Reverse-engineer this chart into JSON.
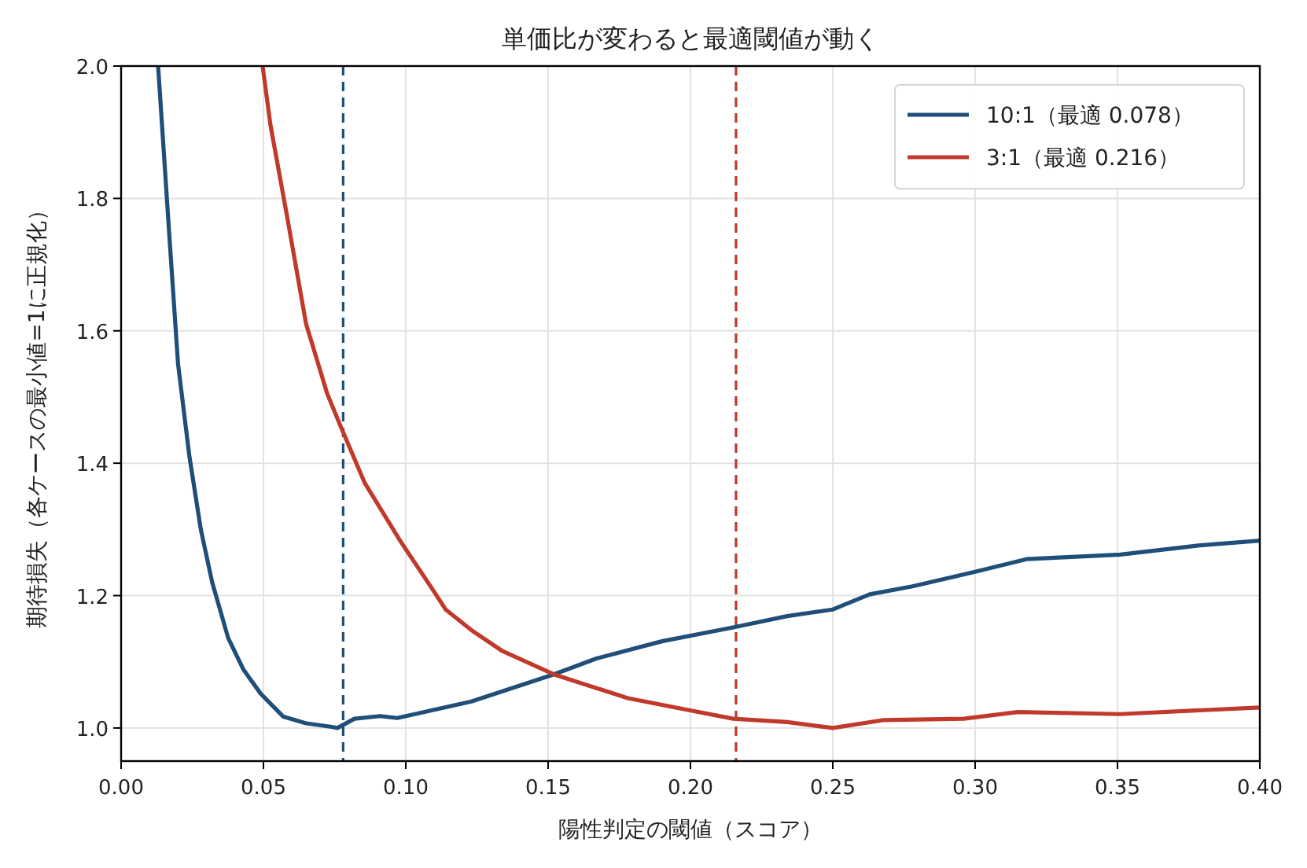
{
  "chart_data": {
    "type": "line",
    "title": "単価比が変わると最適閾値が動く",
    "xlabel": "陽性判定の閾値（スコア）",
    "ylabel": "期待損失（各ケースの最小値=1に正規化）",
    "xlim": [
      0,
      0.4
    ],
    "ylim": [
      0.95,
      2.0
    ],
    "xticks": [
      {
        "value": 0,
        "label": "0.00"
      },
      {
        "value": 0.05,
        "label": "0.05"
      },
      {
        "value": 0.1,
        "label": "0.10"
      },
      {
        "value": 0.15,
        "label": "0.15"
      },
      {
        "value": 0.2,
        "label": "0.20"
      },
      {
        "value": 0.25,
        "label": "0.25"
      },
      {
        "value": 0.3,
        "label": "0.30"
      },
      {
        "value": 0.35,
        "label": "0.35"
      },
      {
        "value": 0.4,
        "label": "0.40"
      }
    ],
    "yticks": [
      {
        "value": 1.0,
        "label": "1.0"
      },
      {
        "value": 1.2,
        "label": "1.2"
      },
      {
        "value": 1.4,
        "label": "1.4"
      },
      {
        "value": 1.6,
        "label": "1.6"
      },
      {
        "value": 1.8,
        "label": "1.8"
      },
      {
        "value": 2.0,
        "label": "2.0"
      }
    ],
    "grid": true,
    "legend": "top right",
    "series": [
      {
        "name": "10:1（最適 0.078）",
        "color": "#1f4e79",
        "x": [
          0.013,
          0.017,
          0.02,
          0.024,
          0.028,
          0.032,
          0.0376,
          0.043,
          0.049,
          0.057,
          0.065,
          0.0735,
          0.076,
          0.082,
          0.091,
          0.097,
          0.123,
          0.152,
          0.167,
          0.19,
          0.215,
          0.234,
          0.25,
          0.263,
          0.278,
          0.3,
          0.318,
          0.351,
          0.379,
          0.4
        ],
        "values": [
          2.0,
          1.74,
          1.55,
          1.41,
          1.3,
          1.22,
          1.136,
          1.088,
          1.052,
          1.017,
          1.007,
          1.002,
          1.0,
          1.014,
          1.018,
          1.015,
          1.04,
          1.081,
          1.105,
          1.131,
          1.152,
          1.169,
          1.179,
          1.202,
          1.214,
          1.236,
          1.255,
          1.262,
          1.276,
          1.283
        ]
      },
      {
        "name": "3:1（最適 0.216）",
        "color": "#c0392b",
        "x": [
          0.0497,
          0.0525,
          0.058,
          0.065,
          0.0724,
          0.077,
          0.0856,
          0.098,
          0.109,
          0.114,
          0.123,
          0.134,
          0.152,
          0.178,
          0.197,
          0.215,
          0.234,
          0.25,
          0.268,
          0.296,
          0.315,
          0.351,
          0.4
        ],
        "values": [
          2.0,
          1.91,
          1.78,
          1.61,
          1.505,
          1.457,
          1.37,
          1.283,
          1.212,
          1.179,
          1.148,
          1.116,
          1.081,
          1.045,
          1.029,
          1.014,
          1.009,
          1.0,
          1.012,
          1.014,
          1.024,
          1.021,
          1.031
        ]
      }
    ],
    "ref_lines": [
      {
        "axis": "x",
        "value": 0.078,
        "color": "#1f4e79",
        "line_style": "dashed"
      },
      {
        "axis": "x",
        "value": 0.216,
        "color": "#c0392b",
        "line_style": "dashed"
      }
    ]
  }
}
